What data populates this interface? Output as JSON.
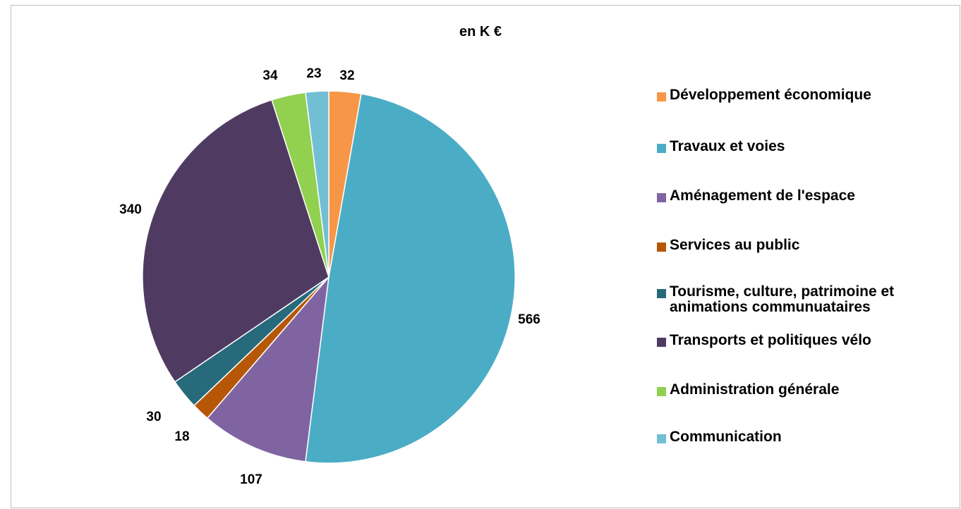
{
  "chart_data": {
    "type": "pie",
    "title": "en K €",
    "unit": "K €",
    "legend_position": "right",
    "start_angle_deg": 0,
    "direction": "clockwise",
    "slices": [
      {
        "label": "Développement économique",
        "value": 32,
        "color": "#F79646"
      },
      {
        "label": "Travaux et voies",
        "value": 566,
        "color": "#4BACC6"
      },
      {
        "label": "Aménagement de l'espace",
        "value": 107,
        "color": "#8064A2"
      },
      {
        "label": "Services au public",
        "value": 18,
        "color": "#B65708"
      },
      {
        "label": "Tourisme, culture, patrimoine et animations communuataires",
        "value": 30,
        "color": "#276A7C"
      },
      {
        "label": "Transports et politiques vélo",
        "value": 340,
        "color": "#4F3B62"
      },
      {
        "label": "Administration générale",
        "value": 34,
        "color": "#92D050"
      },
      {
        "label": "Communication",
        "value": 23,
        "color": "#72BFD4"
      }
    ]
  }
}
